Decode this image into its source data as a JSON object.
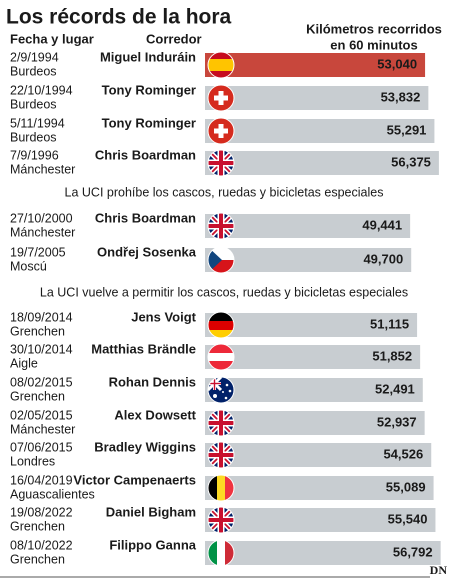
{
  "chart_data": {
    "type": "bar",
    "title": "Los récords de la hora",
    "date_header": "Fecha y lugar",
    "rider_header": "Corredor",
    "value_header": [
      "Kilómetros recorridos",
      "en 60 minutos"
    ],
    "categories": [
      "Miguel Induráin",
      "Tony Rominger",
      "Tony Rominger",
      "Chris Boardman",
      "Chris Boardman",
      "Ondřej Sosenka",
      "Jens Voigt",
      "Matthias Brändle",
      "Rohan Dennis",
      "Alex Dowsett",
      "Bradley Wiggins",
      "Victor Campenaerts",
      "Daniel Bigham",
      "Filippo Ganna"
    ],
    "dates": [
      "2/9/1994",
      "22/10/1994",
      "5/11/1994",
      "7/9/1996",
      "27/10/2000",
      "19/7/2005",
      "18/09/2014",
      "30/10/2014",
      "08/02/2015",
      "02/05/2015",
      "07/06/2015",
      "16/04/2019",
      "19/08/2022",
      "08/10/2022"
    ],
    "places": [
      "Burdeos",
      "Burdeos",
      "Burdeos",
      "Mánchester",
      "Mánchester",
      "Moscú",
      "Grenchen",
      "Aigle",
      "Grenchen",
      "Mánchester",
      "Londres",
      "Aguascalientes",
      "Grenchen",
      "Grenchen"
    ],
    "values": [
      53.04,
      53.832,
      55.291,
      56.375,
      49.441,
      49.7,
      51.115,
      51.852,
      52.491,
      52.937,
      54.526,
      55.089,
      55.54,
      56.792
    ],
    "value_labels": [
      "53,040",
      "53,832",
      "55,291",
      "56,375",
      "49,441",
      "49,700",
      "51,115",
      "51,852",
      "52,491",
      "52,937",
      "54,526",
      "55,089",
      "55,540",
      "56,792"
    ],
    "notes": [
      "La UCI prohíbe los cascos, ruedas y bicicletas especiales",
      "La UCI vuelve a permitir los cascos, ruedas y bicicletas especiales"
    ],
    "color": "#c8cdd1",
    "highlight_color": "#c8473c",
    "xlim": [
      0,
      57
    ],
    "source": "DN"
  }
}
